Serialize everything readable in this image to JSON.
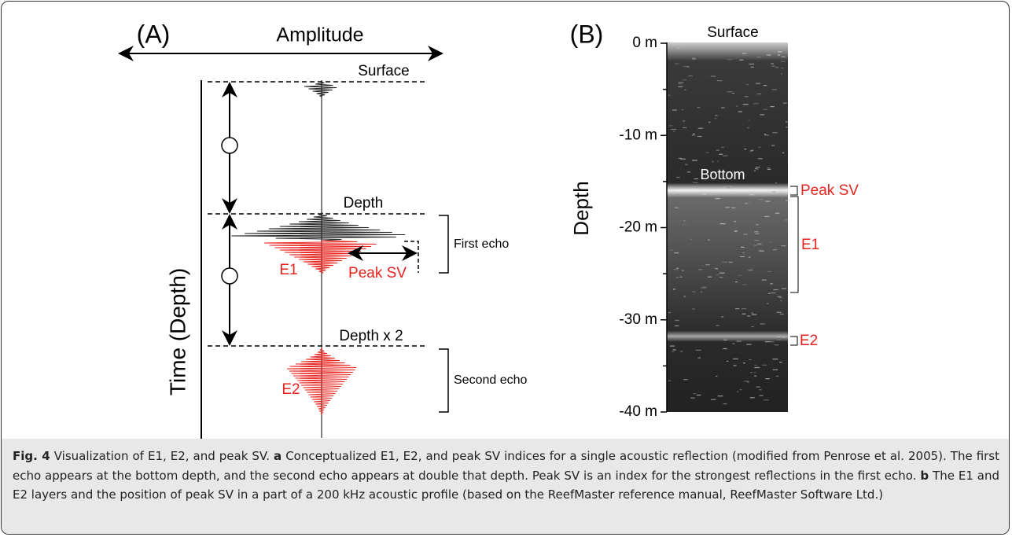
{
  "panel_a": {
    "label": "(A)",
    "amplitude_label": "Amplitude",
    "time_axis_label": "Time (Depth)",
    "surface_label": "Surface",
    "depth_label": "Depth",
    "depth2_label": "Depth x 2",
    "e1_label": "E1",
    "e2_label": "E2",
    "peak_sv_label": "Peak SV",
    "first_echo_label": "First echo",
    "second_echo_label": "Second echo"
  },
  "panel_b": {
    "label": "(B)",
    "axis_label": "Depth",
    "surface_label": "Surface",
    "bottom_label": "Bottom",
    "peak_sv_label": "Peak SV",
    "e1_label": "E1",
    "e2_label": "E2",
    "depth_ticks": [
      "0 m",
      "-10 m",
      "-20 m",
      "-30 m",
      "-40 m"
    ]
  },
  "caption": {
    "figure_label": "Fig. 4",
    "title": "Visualization of E1, E2, and peak SV.",
    "part_a_label": "a",
    "part_a_text": "Conceptualized E1, E2, and peak SV indices for a single acoustic reflection (modified from Penrose et al. 2005). The first echo appears at the bottom depth, and the second echo appears at double that depth. Peak SV is an index for the strongest reflections in the first echo.",
    "part_b_label": "b",
    "part_b_text": "The E1 and E2 layers and the position of peak SV in a part of a 200 kHz acoustic profile (based on the ReefMaster reference manual, ReefMaster Software Ltd.)"
  }
}
